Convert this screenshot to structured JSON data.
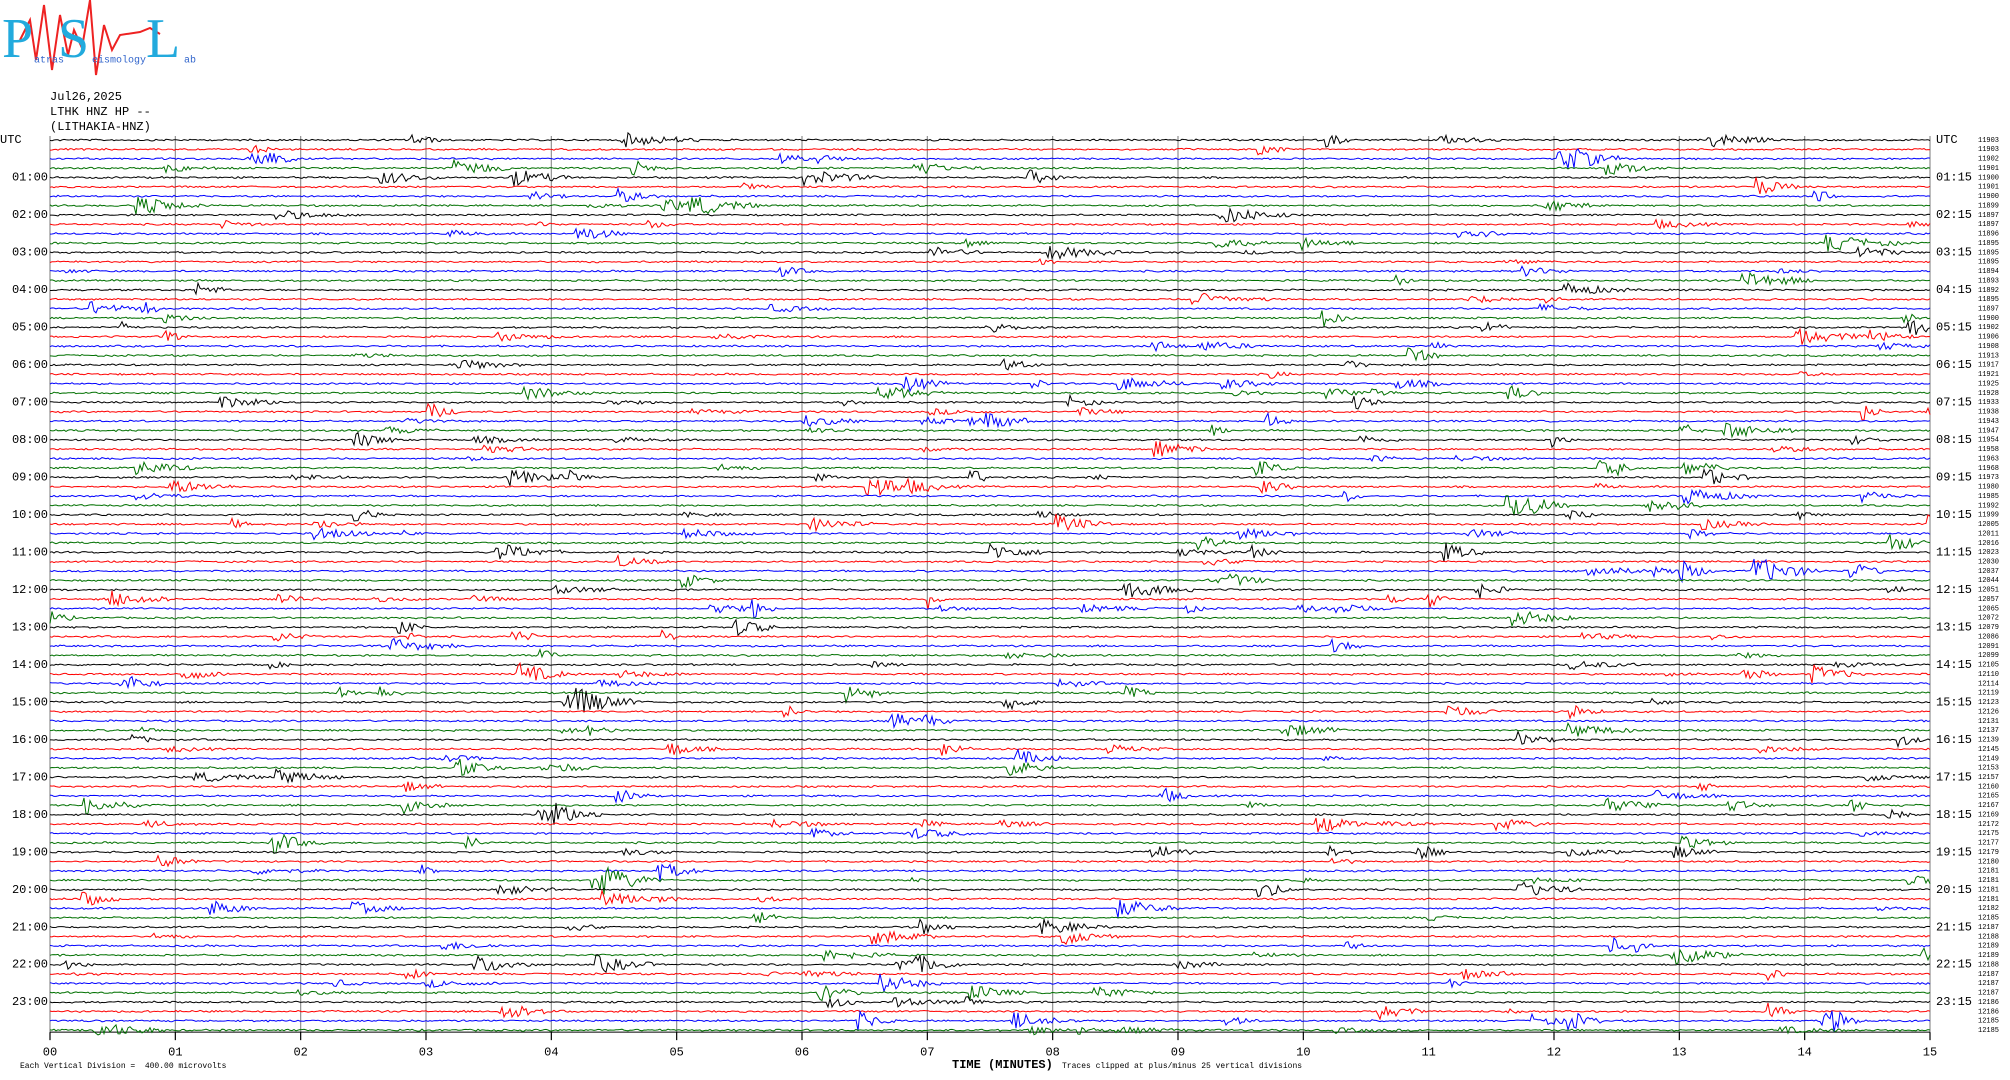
{
  "chart_data": {
    "type": "helicorder",
    "logo": {
      "letters": [
        "P",
        "S",
        "L"
      ],
      "words": [
        "atras",
        "eismology",
        "ab"
      ]
    },
    "header": [
      "Jul26,2025",
      "LTHK HNZ HP --",
      "(LITHAKIA-HNZ)"
    ],
    "left_labels": [
      "UTC",
      "01:00",
      "02:00",
      "03:00",
      "04:00",
      "05:00",
      "06:00",
      "07:00",
      "08:00",
      "09:00",
      "10:00",
      "11:00",
      "12:00",
      "13:00",
      "14:00",
      "15:00",
      "16:00",
      "17:00",
      "18:00",
      "19:00",
      "20:00",
      "21:00",
      "22:00",
      "23:00"
    ],
    "right_labels": [
      "UTC",
      "01:15",
      "02:15",
      "03:15",
      "04:15",
      "05:15",
      "06:15",
      "07:15",
      "08:15",
      "09:15",
      "10:15",
      "11:15",
      "12:15",
      "13:15",
      "14:15",
      "15:15",
      "16:15",
      "17:15",
      "18:15",
      "19:15",
      "20:15",
      "21:15",
      "22:15",
      "23:15"
    ],
    "row_values": [
      11903,
      11903,
      11902,
      11901,
      11900,
      11901,
      11900,
      11899,
      11897,
      11897,
      11896,
      11895,
      11895,
      11895,
      11894,
      11893,
      11892,
      11895,
      11897,
      11900,
      11902,
      11906,
      11908,
      11913,
      11917,
      11921,
      11925,
      11928,
      11933,
      11938,
      11943,
      11947,
      11954,
      11958,
      11963,
      11968,
      11973,
      11980,
      11985,
      11992,
      11999,
      12005,
      12011,
      12016,
      12023,
      12030,
      12037,
      12044,
      12051,
      12057,
      12065,
      12072,
      12079,
      12086,
      12091,
      12099,
      12105,
      12110,
      12114,
      12119,
      12123,
      12126,
      12131,
      12137,
      12139,
      12145,
      12149,
      12153,
      12157,
      12160,
      12165,
      12167,
      12169,
      12172,
      12175,
      12177,
      12179,
      12180,
      12181,
      12181,
      12181,
      12181,
      12182,
      12185,
      12187,
      12188,
      12189,
      12189,
      12188,
      12187,
      12187,
      12187,
      12186,
      12186,
      12185,
      12185
    ],
    "colors": [
      "#000000",
      "#ff0000",
      "#0000ff",
      "#007000"
    ],
    "xlim": [
      0,
      15
    ],
    "xticks": [
      {
        "value": 0,
        "label": "00"
      },
      {
        "value": 1,
        "label": "01"
      },
      {
        "value": 2,
        "label": "02"
      },
      {
        "value": 3,
        "label": "03"
      },
      {
        "value": 4,
        "label": "04"
      },
      {
        "value": 5,
        "label": "05"
      },
      {
        "value": 6,
        "label": "06"
      },
      {
        "value": 7,
        "label": "07"
      },
      {
        "value": 8,
        "label": "08"
      },
      {
        "value": 9,
        "label": "09"
      },
      {
        "value": 10,
        "label": "10"
      },
      {
        "value": 11,
        "label": "11"
      },
      {
        "value": 12,
        "label": "12"
      },
      {
        "value": 13,
        "label": "13"
      },
      {
        "value": 14,
        "label": "14"
      },
      {
        "value": 15,
        "label": "15"
      }
    ],
    "xlabel": "TIME (MINUTES)",
    "footer_left": "Each Vertical Division =  400.00 microvolts",
    "footer_right": "Traces clipped at plus/minus 25 vertical divisions"
  }
}
